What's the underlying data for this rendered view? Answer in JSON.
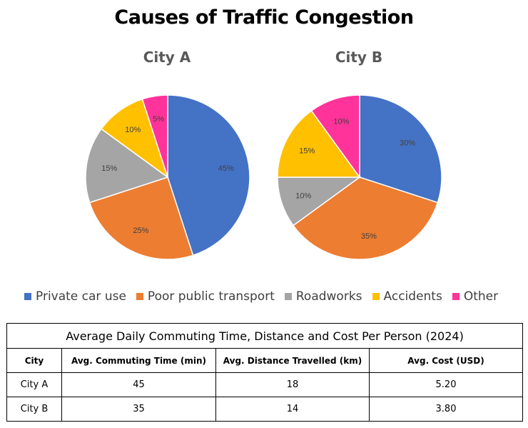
{
  "title": "Causes of Traffic Congestion",
  "colors": {
    "Private car use": "#4472C4",
    "Poor public transport": "#ED7D31",
    "Roadworks": "#A5A5A5",
    "Accidents": "#FFC000",
    "Other": "#FF3399"
  },
  "chart_data": [
    {
      "type": "pie",
      "title": "City A",
      "labels": [
        "Private car use",
        "Poor public transport",
        "Roadworks",
        "Accidents",
        "Other"
      ],
      "values": [
        45,
        25,
        15,
        10,
        5
      ],
      "value_labels": [
        "45%",
        "25%",
        "15%",
        "10%",
        "5%"
      ]
    },
    {
      "type": "pie",
      "title": "City B",
      "labels": [
        "Private car use",
        "Poor public transport",
        "Roadworks",
        "Accidents",
        "Other"
      ],
      "values": [
        30,
        35,
        10,
        15,
        10
      ],
      "value_labels": [
        "30%",
        "35%",
        "10%",
        "15%",
        "10%"
      ]
    }
  ],
  "legend": [
    "Private car use",
    "Poor public transport",
    "Roadworks",
    "Accidents",
    "Other"
  ],
  "table": {
    "caption": "Average Daily Commuting Time, Distance and Cost Per Person (2024)",
    "headers": [
      "City",
      "Avg. Commuting Time (min)",
      "Avg. Distance Travelled (km)",
      "Avg. Cost (USD)"
    ],
    "rows": [
      [
        "City A",
        "45",
        "18",
        "5.20"
      ],
      [
        "City B",
        "35",
        "14",
        "3.80"
      ]
    ]
  }
}
